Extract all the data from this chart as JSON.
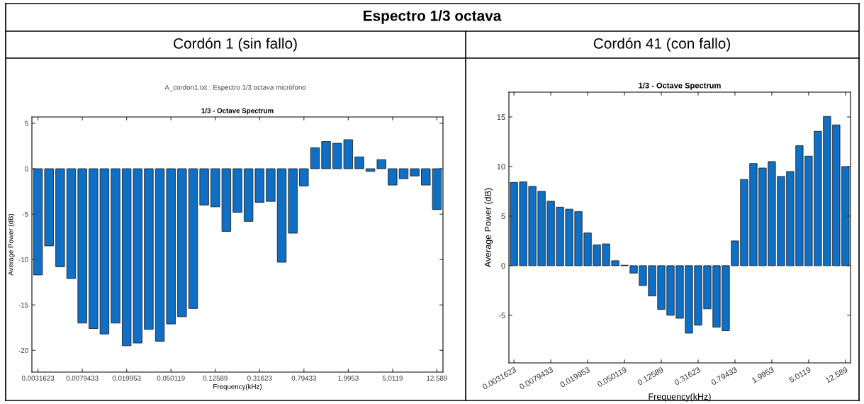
{
  "chart_data": [
    {
      "type": "bar",
      "title": "1/3 - Octave Spectrum",
      "subtitle": "Cordón 1 (sin fallo)",
      "xlabel": "Frequency(kHz)",
      "ylabel": "Average Power (dB)",
      "annotations": [
        "Espectro 1/3 octava",
        "A_cordon1.txt : Espectro 1/3 octava micrófono"
      ],
      "categories": [
        "0.0031623",
        null,
        null,
        null,
        "0.0079433",
        null,
        null,
        null,
        "0.019953",
        null,
        null,
        null,
        "0.050119",
        null,
        null,
        null,
        "0.12589",
        null,
        null,
        null,
        "0.31623",
        null,
        null,
        null,
        "0.79433",
        null,
        null,
        null,
        "1.9953",
        null,
        null,
        null,
        "5.0119",
        null,
        null,
        null,
        "12.589"
      ],
      "values": [
        -11.7,
        -8.5,
        -10.8,
        -12.1,
        -17.0,
        -17.6,
        -18.2,
        -17.0,
        -19.5,
        -19.2,
        -17.7,
        -19.0,
        -17.1,
        -16.3,
        -15.4,
        -4.0,
        -4.2,
        -6.9,
        -4.8,
        -5.8,
        -3.7,
        -3.6,
        -10.3,
        -7.1,
        -1.9,
        2.3,
        3.0,
        2.8,
        3.2,
        1.3,
        -0.3,
        1.0,
        -1.8,
        -1.1,
        -0.8,
        -1.8,
        -4.5
      ],
      "color": "#0e6fc5",
      "ylim": [
        -22.4,
        5.7
      ],
      "yticks": [
        -20,
        -15,
        -10,
        -5,
        0,
        5
      ],
      "grid": false,
      "legend": false
    },
    {
      "type": "bar",
      "title": "1/3 - Octave Spectrum",
      "subtitle": "Cordón 41 (con fallo)",
      "xlabel": "Frequency(kHz)",
      "ylabel": "Average Power (dB)",
      "categories": [
        "0.0031623",
        null,
        null,
        null,
        "0.0079433",
        null,
        null,
        null,
        "0.019953",
        null,
        null,
        null,
        "0.050119",
        null,
        null,
        null,
        "0.12589",
        null,
        null,
        null,
        "0.31623",
        null,
        null,
        null,
        "0.79433",
        null,
        null,
        null,
        "1.9953",
        null,
        null,
        null,
        "5.0119",
        null,
        null,
        null,
        "12.589"
      ],
      "values": [
        8.4,
        8.45,
        8.0,
        7.5,
        6.5,
        5.9,
        5.7,
        5.45,
        3.3,
        2.1,
        2.2,
        0.5,
        0.05,
        -0.75,
        -2.0,
        -3.05,
        -4.4,
        -5.0,
        -5.3,
        -6.8,
        -6.0,
        -4.35,
        -6.2,
        -6.55,
        2.5,
        8.7,
        10.3,
        9.85,
        10.5,
        9.0,
        9.5,
        12.1,
        11.05,
        13.55,
        15.05,
        14.2,
        10.0
      ],
      "color": "#0e6fc5",
      "ylim": [
        -9.8,
        17.5
      ],
      "yticks": [
        -5,
        0,
        5,
        10,
        15
      ],
      "grid": false,
      "legend": false
    }
  ]
}
